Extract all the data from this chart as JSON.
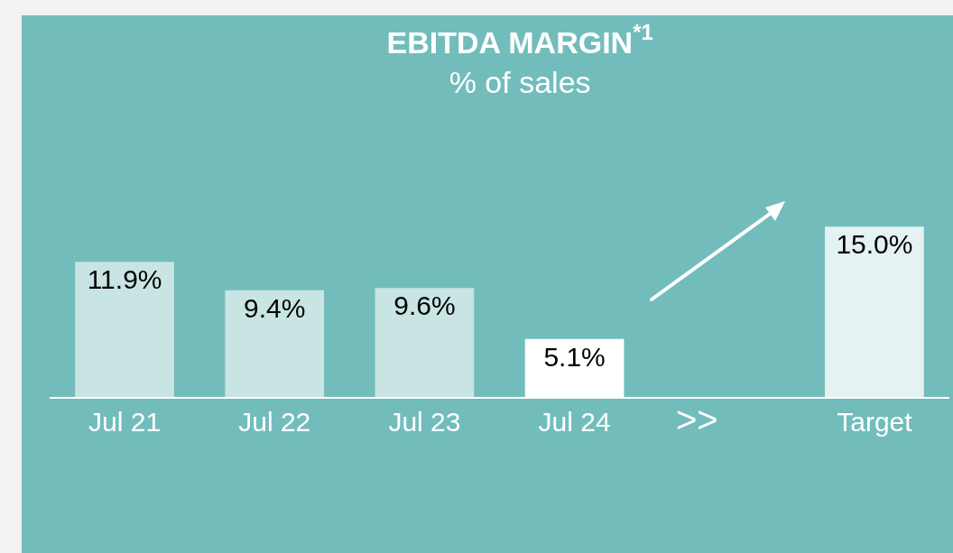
{
  "chart_data": {
    "type": "bar",
    "title": "EBITDA MARGIN$^{*1}$",
    "subtitle": "% of sales",
    "categories": [
      "Jul 21",
      "Jul 22",
      "Jul 23",
      "Jul 24",
      null,
      "Target"
    ],
    "values": [
      11.9,
      9.4,
      9.6,
      5.1,
      null,
      15.0
    ],
    "value_labels": [
      "11.9%",
      "9.4%",
      "9.6%",
      "5.1%",
      null,
      "15.0%"
    ],
    "colors": [
      "#c8e4e3",
      "#c8e4e3",
      "#c8e4e3",
      "#ffffff",
      "#ffffff",
      "#e4f2f1"
    ],
    "annotations": [
      ">>"
    ]
  }
}
